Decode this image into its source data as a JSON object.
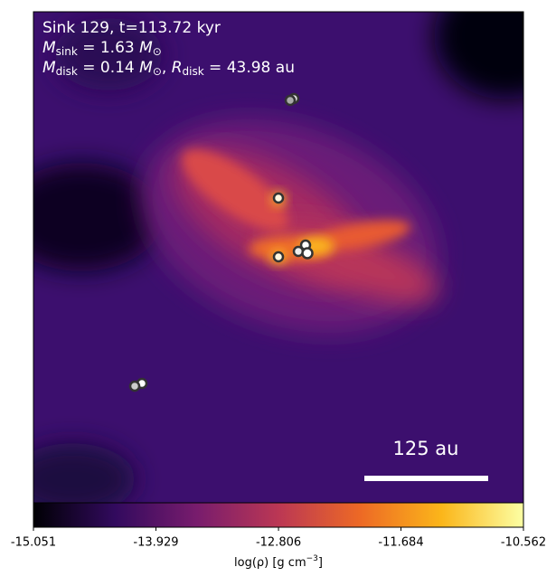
{
  "chart_data": {
    "type": "image",
    "info": {
      "line1": "Sink 129, t=113.72 kyr",
      "line2": {
        "symbol": "M",
        "sub": "sink",
        "text": " = 1.63 ",
        "unit": "M",
        "unit_sub": "⊙"
      },
      "line3": {
        "symbol": "M",
        "sub": "disk",
        "text": " = 0.14 ",
        "unit": "M",
        "unit_sub": "⊙",
        "sep": ", ",
        "symbol2": "R",
        "sub2": "disk",
        "text2": " = 43.98 au"
      }
    },
    "scale_bar": "125 au",
    "colorbar": {
      "label": {
        "text": "log(ρ) [g cm",
        "sup": "−3",
        "end": "]"
      },
      "lim": [
        -15.051,
        -10.562
      ],
      "ticks": [
        -15.051,
        -13.929,
        -12.806,
        -11.684,
        -10.562
      ],
      "colormap": [
        "#000004",
        "#320a5e",
        "#781c6d",
        "#bb3754",
        "#ed6925",
        "#fbb61a",
        "#fcffa4"
      ]
    }
  }
}
